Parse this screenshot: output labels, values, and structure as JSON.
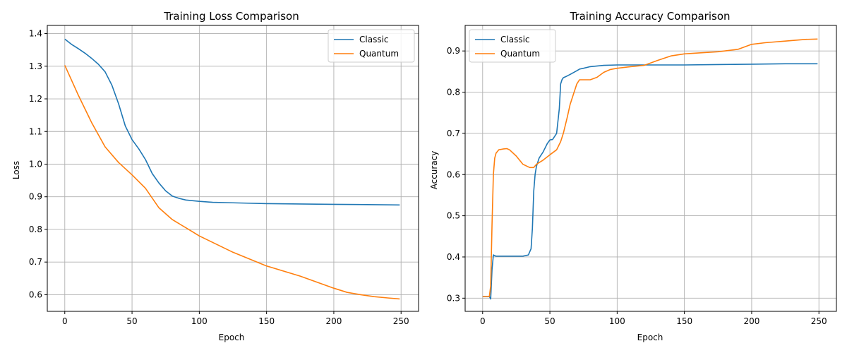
{
  "chart_data": [
    {
      "type": "line",
      "title": "Training Loss Comparison",
      "xlabel": "Epoch",
      "ylabel": "Loss",
      "xlim": [
        -13,
        263
      ],
      "ylim": [
        0.549,
        1.425
      ],
      "xticks": [
        0,
        50,
        100,
        150,
        200,
        250
      ],
      "yticks": [
        0.6,
        0.7,
        0.8,
        0.9,
        1.0,
        1.1,
        1.2,
        1.3,
        1.4
      ],
      "ytick_decimals": 1,
      "grid": true,
      "legend": "top-right",
      "series": [
        {
          "name": "Classic",
          "color": "#1f77b4",
          "x": [
            0,
            5,
            10,
            15,
            20,
            25,
            30,
            35,
            40,
            45,
            50,
            55,
            60,
            65,
            70,
            75,
            80,
            85,
            90,
            100,
            110,
            120,
            130,
            150,
            175,
            200,
            225,
            249
          ],
          "y": [
            1.383,
            1.367,
            1.354,
            1.34,
            1.324,
            1.306,
            1.283,
            1.242,
            1.185,
            1.117,
            1.075,
            1.047,
            1.014,
            0.971,
            0.942,
            0.918,
            0.902,
            0.895,
            0.89,
            0.886,
            0.883,
            0.882,
            0.881,
            0.879,
            0.878,
            0.877,
            0.876,
            0.875
          ]
        },
        {
          "name": "Quantum",
          "color": "#ff7f0e",
          "x": [
            0,
            10,
            20,
            30,
            40,
            50,
            60,
            70,
            80,
            90,
            100,
            125,
            150,
            175,
            200,
            210,
            220,
            230,
            240,
            249
          ],
          "y": [
            1.303,
            1.212,
            1.127,
            1.053,
            1.005,
            0.967,
            0.926,
            0.866,
            0.83,
            0.805,
            0.78,
            0.73,
            0.688,
            0.657,
            0.62,
            0.607,
            0.6,
            0.594,
            0.59,
            0.587
          ]
        }
      ]
    },
    {
      "type": "line",
      "title": "Training Accuracy Comparison",
      "xlabel": "Epoch",
      "ylabel": "Accuracy",
      "xlim": [
        -13,
        263
      ],
      "ylim": [
        0.268,
        0.962
      ],
      "xticks": [
        0,
        50,
        100,
        150,
        200,
        250
      ],
      "yticks": [
        0.3,
        0.4,
        0.5,
        0.6,
        0.7,
        0.8,
        0.9
      ],
      "ytick_decimals": 1,
      "grid": true,
      "legend": "top-left",
      "series": [
        {
          "name": "Classic",
          "color": "#1f77b4",
          "x": [
            0,
            5,
            6,
            7,
            8,
            9,
            10,
            20,
            30,
            34,
            36,
            37,
            38,
            39,
            40,
            42,
            45,
            48,
            50,
            52,
            55,
            57,
            58,
            59,
            60,
            62,
            65,
            70,
            72,
            75,
            80,
            90,
            100,
            120,
            150,
            175,
            200,
            225,
            249
          ],
          "y": [
            0.304,
            0.304,
            0.298,
            0.37,
            0.405,
            0.403,
            0.402,
            0.402,
            0.402,
            0.405,
            0.42,
            0.47,
            0.56,
            0.6,
            0.62,
            0.64,
            0.655,
            0.675,
            0.684,
            0.685,
            0.7,
            0.76,
            0.82,
            0.83,
            0.835,
            0.838,
            0.843,
            0.852,
            0.856,
            0.858,
            0.862,
            0.865,
            0.866,
            0.866,
            0.866,
            0.867,
            0.868,
            0.869,
            0.869
          ]
        },
        {
          "name": "Quantum",
          "color": "#ff7f0e",
          "x": [
            0,
            5,
            6,
            7,
            8,
            9,
            10,
            12,
            15,
            18,
            20,
            25,
            30,
            35,
            38,
            40,
            45,
            50,
            55,
            58,
            60,
            63,
            65,
            68,
            70,
            72,
            75,
            80,
            85,
            90,
            95,
            100,
            110,
            120,
            130,
            140,
            150,
            160,
            175,
            190,
            200,
            210,
            225,
            240,
            249
          ],
          "y": [
            0.304,
            0.304,
            0.33,
            0.48,
            0.6,
            0.64,
            0.652,
            0.66,
            0.662,
            0.663,
            0.66,
            0.645,
            0.625,
            0.617,
            0.617,
            0.625,
            0.635,
            0.648,
            0.66,
            0.68,
            0.7,
            0.74,
            0.77,
            0.8,
            0.82,
            0.83,
            0.83,
            0.83,
            0.836,
            0.848,
            0.855,
            0.858,
            0.862,
            0.865,
            0.877,
            0.888,
            0.893,
            0.895,
            0.898,
            0.904,
            0.916,
            0.92,
            0.924,
            0.928,
            0.929
          ]
        }
      ]
    }
  ]
}
